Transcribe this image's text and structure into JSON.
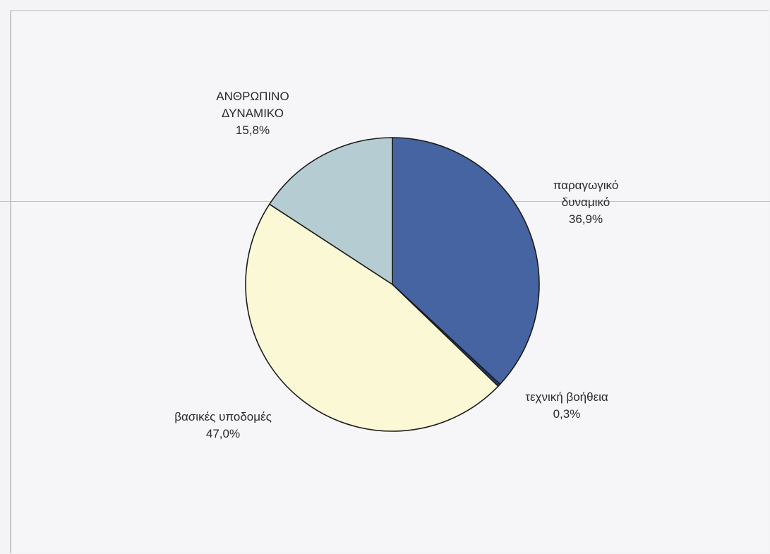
{
  "chart_data": {
    "type": "pie",
    "slices": [
      {
        "label_lines": [
          "παραγωγικό",
          "δυναμικό"
        ],
        "percent_text": "36,9%",
        "value": 36.9,
        "color": "#4663a2"
      },
      {
        "label_lines": [
          "τεχνική βοήθεια"
        ],
        "percent_text": "0,3%",
        "value": 0.3,
        "color": "#243c7a"
      },
      {
        "label_lines": [
          "βασικές υποδομές"
        ],
        "percent_text": "47,0%",
        "value": 47.0,
        "color": "#fbf8d6"
      },
      {
        "label_lines": [
          "ΑΝΘΡΩΠΙΝΟ",
          "ΔΥΝΑΜΙΚΟ"
        ],
        "percent_text": "15,8%",
        "value": 15.8,
        "color": "#b6ccd3"
      }
    ],
    "start_angle": "12 o'clock",
    "direction": "clockwise",
    "title": "",
    "legend": "none"
  }
}
